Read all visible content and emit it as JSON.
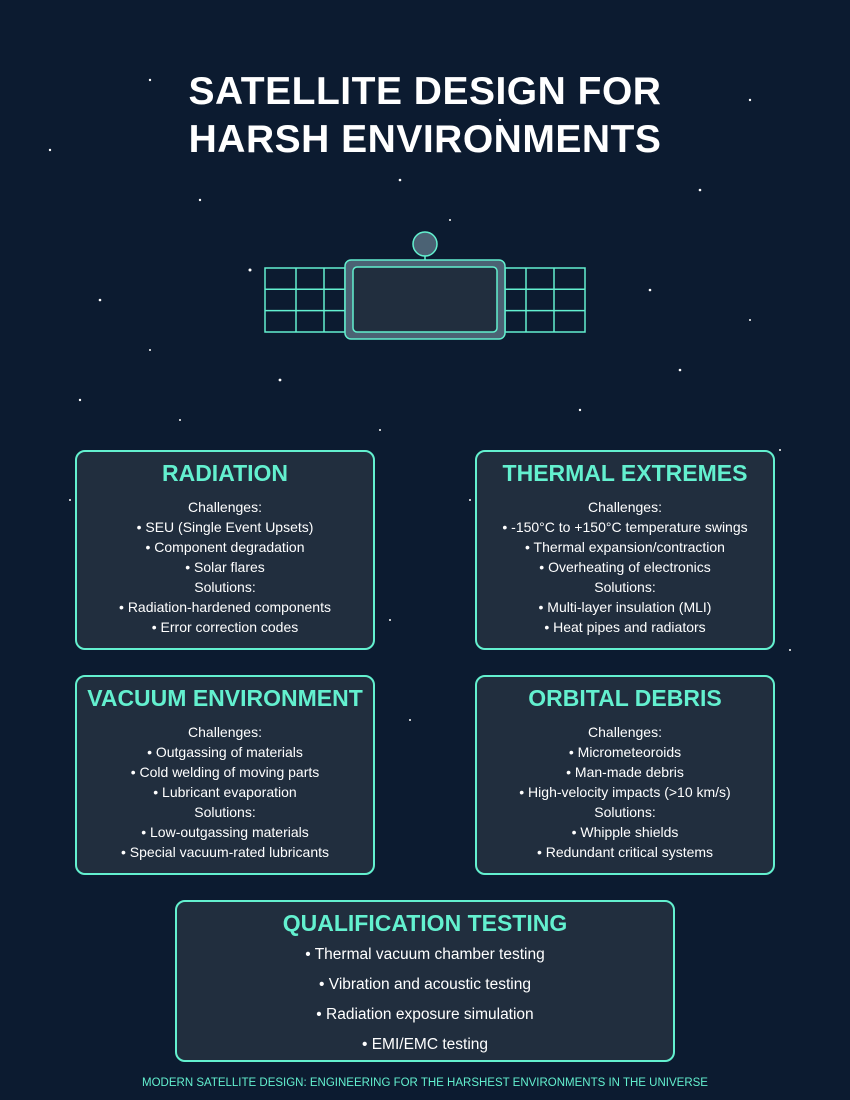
{
  "title": {
    "line1": "SATELLITE DESIGN FOR",
    "line2": "HARSH ENVIRONMENTS"
  },
  "colors": {
    "background": "#0c1b30",
    "accent": "#63f0cf",
    "card": "#212e3e",
    "text": "#ffffff"
  },
  "illustration": "satellite-icon",
  "cards": [
    {
      "title": "RADIATION",
      "challenges_label": "Challenges:",
      "challenges": [
        "• SEU (Single Event Upsets)",
        "• Component degradation",
        "• Solar flares"
      ],
      "solutions_label": "Solutions:",
      "solutions": [
        "• Radiation-hardened components",
        "• Error correction codes"
      ]
    },
    {
      "title": "THERMAL EXTREMES",
      "challenges_label": "Challenges:",
      "challenges": [
        "• -150°C to +150°C temperature swings",
        "• Thermal expansion/contraction",
        "• Overheating of electronics"
      ],
      "solutions_label": "Solutions:",
      "solutions": [
        "• Multi-layer insulation (MLI)",
        "• Heat pipes and radiators"
      ]
    },
    {
      "title": "VACUUM ENVIRONMENT",
      "challenges_label": "Challenges:",
      "challenges": [
        "• Outgassing of materials",
        "• Cold welding of moving parts",
        "• Lubricant evaporation"
      ],
      "solutions_label": "Solutions:",
      "solutions": [
        "• Low-outgassing materials",
        "• Special vacuum-rated lubricants"
      ]
    },
    {
      "title": "ORBITAL DEBRIS",
      "challenges_label": "Challenges:",
      "challenges": [
        "• Micrometeoroids",
        "• Man-made debris",
        "• High-velocity impacts (>10 km/s)"
      ],
      "solutions_label": "Solutions:",
      "solutions": [
        "• Whipple shields",
        "• Redundant critical systems"
      ]
    }
  ],
  "qualification": {
    "title": "QUALIFICATION TESTING",
    "items": [
      "• Thermal vacuum chamber testing",
      "• Vibration and acoustic testing",
      "• Radiation exposure simulation",
      "• EMI/EMC testing"
    ]
  },
  "footer": "MODERN SATELLITE DESIGN: ENGINEERING FOR THE HARSHEST ENVIRONMENTS IN THE UNIVERSE"
}
